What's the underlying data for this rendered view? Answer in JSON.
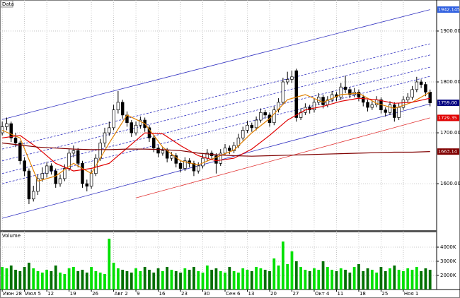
{
  "chart_data": {
    "type": "candlestick",
    "price_title": "Data",
    "volume_title": "Volume",
    "xlim": [
      -0.5,
      97
    ],
    "xticks": [
      {
        "value": 0,
        "label": "Июн 28"
      },
      {
        "value": 5,
        "label": "Июл 5"
      },
      {
        "value": 10,
        "label": "12"
      },
      {
        "value": 15,
        "label": "19"
      },
      {
        "value": 20,
        "label": "26"
      },
      {
        "value": 25,
        "label": "Авг 2"
      },
      {
        "value": 30,
        "label": "9"
      },
      {
        "value": 35,
        "label": "16"
      },
      {
        "value": 40,
        "label": "23"
      },
      {
        "value": 45,
        "label": "30"
      },
      {
        "value": 50,
        "label": "Сен 6"
      },
      {
        "value": 55,
        "label": "13"
      },
      {
        "value": 60,
        "label": "20"
      },
      {
        "value": 65,
        "label": "27"
      },
      {
        "value": 70,
        "label": "Окт 4"
      },
      {
        "value": 75,
        "label": "11"
      },
      {
        "value": 80,
        "label": "18"
      },
      {
        "value": 85,
        "label": "25"
      },
      {
        "value": 90,
        "label": "Ноя 1"
      }
    ],
    "ylim": [
      1510,
      1961
    ],
    "yticks": [
      {
        "value": 1600,
        "label": "1600.00"
      },
      {
        "value": 1700,
        "label": "1700.00"
      },
      {
        "value": 1800,
        "label": "1800.00"
      },
      {
        "value": 1900,
        "label": "1900.00"
      }
    ],
    "grid": true,
    "up_color": "#ffffff",
    "down_color": "#000000",
    "open": [
      1700,
      1712,
      1718,
      1690,
      1680,
      1645,
      1625,
      1570,
      1585,
      1610,
      1620,
      1635,
      1625,
      1600,
      1610,
      1630,
      1660,
      1665,
      1640,
      1600,
      1595,
      1620,
      1650,
      1680,
      1700,
      1710,
      1745,
      1760,
      1735,
      1720,
      1700,
      1715,
      1725,
      1710,
      1690,
      1670,
      1660,
      1665,
      1650,
      1655,
      1640,
      1630,
      1645,
      1640,
      1625,
      1635,
      1650,
      1660,
      1655,
      1640,
      1660,
      1670,
      1665,
      1675,
      1690,
      1705,
      1715,
      1710,
      1725,
      1740,
      1735,
      1720,
      1745,
      1760,
      1800,
      1805,
      1822,
      1730,
      1740,
      1750,
      1745,
      1760,
      1770,
      1755,
      1765,
      1775,
      1770,
      1790,
      1785,
      1775,
      1780,
      1770,
      1760,
      1750,
      1755,
      1765,
      1745,
      1740,
      1755,
      1730,
      1750,
      1765,
      1770,
      1785,
      1800,
      1795,
      1780
    ],
    "high": [
      1722,
      1730,
      1722,
      1700,
      1684,
      1652,
      1630,
      1596,
      1618,
      1632,
      1642,
      1640,
      1630,
      1618,
      1638,
      1668,
      1675,
      1670,
      1645,
      1608,
      1628,
      1658,
      1688,
      1710,
      1722,
      1755,
      1782,
      1765,
      1742,
      1725,
      1722,
      1732,
      1730,
      1715,
      1695,
      1676,
      1672,
      1670,
      1662,
      1660,
      1645,
      1652,
      1650,
      1645,
      1642,
      1658,
      1668,
      1665,
      1660,
      1668,
      1678,
      1675,
      1682,
      1698,
      1712,
      1724,
      1720,
      1732,
      1748,
      1745,
      1740,
      1752,
      1768,
      1808,
      1820,
      1822,
      1826,
      1748,
      1758,
      1755,
      1768,
      1778,
      1775,
      1772,
      1782,
      1780,
      1798,
      1812,
      1790,
      1788,
      1785,
      1775,
      1765,
      1762,
      1772,
      1770,
      1750,
      1762,
      1760,
      1758,
      1772,
      1778,
      1792,
      1810,
      1805,
      1800,
      1785
    ],
    "low": [
      1695,
      1705,
      1682,
      1672,
      1638,
      1615,
      1560,
      1565,
      1578,
      1604,
      1612,
      1618,
      1592,
      1594,
      1605,
      1625,
      1652,
      1632,
      1592,
      1585,
      1590,
      1615,
      1645,
      1672,
      1694,
      1705,
      1738,
      1728,
      1712,
      1692,
      1695,
      1708,
      1702,
      1682,
      1662,
      1652,
      1655,
      1642,
      1645,
      1632,
      1622,
      1625,
      1632,
      1615,
      1620,
      1630,
      1645,
      1648,
      1620,
      1635,
      1655,
      1658,
      1660,
      1670,
      1685,
      1700,
      1702,
      1705,
      1720,
      1728,
      1712,
      1715,
      1740,
      1755,
      1795,
      1798,
      1722,
      1725,
      1735,
      1738,
      1740,
      1755,
      1748,
      1750,
      1760,
      1762,
      1765,
      1778,
      1768,
      1770,
      1762,
      1752,
      1742,
      1745,
      1750,
      1738,
      1732,
      1735,
      1722,
      1725,
      1745,
      1760,
      1765,
      1780,
      1788,
      1772,
      1752
    ],
    "close": [
      1712,
      1718,
      1690,
      1680,
      1645,
      1625,
      1570,
      1585,
      1610,
      1620,
      1635,
      1625,
      1600,
      1610,
      1630,
      1660,
      1665,
      1640,
      1600,
      1595,
      1620,
      1650,
      1680,
      1700,
      1710,
      1745,
      1760,
      1735,
      1720,
      1700,
      1715,
      1725,
      1710,
      1690,
      1670,
      1660,
      1665,
      1650,
      1655,
      1640,
      1630,
      1645,
      1640,
      1625,
      1635,
      1650,
      1660,
      1655,
      1640,
      1660,
      1670,
      1665,
      1675,
      1690,
      1705,
      1715,
      1710,
      1725,
      1740,
      1735,
      1720,
      1745,
      1760,
      1800,
      1805,
      1810,
      1730,
      1740,
      1750,
      1745,
      1760,
      1770,
      1755,
      1765,
      1775,
      1770,
      1790,
      1785,
      1775,
      1780,
      1770,
      1760,
      1750,
      1755,
      1765,
      1745,
      1740,
      1755,
      1730,
      1750,
      1765,
      1770,
      1785,
      1800,
      1795,
      1780,
      1759
    ],
    "averages": [
      {
        "color": "#e08000",
        "x": [
          0,
          4,
          8,
          12,
          16,
          20,
          24,
          28,
          32,
          36,
          40,
          44,
          48,
          52,
          56,
          60,
          64,
          68,
          72,
          76,
          80,
          84,
          88,
          92,
          96
        ],
        "values": [
          1705,
          1690,
          1605,
          1615,
          1640,
          1620,
          1680,
          1735,
          1718,
          1672,
          1645,
          1637,
          1652,
          1666,
          1700,
          1728,
          1765,
          1775,
          1760,
          1775,
          1778,
          1758,
          1748,
          1760,
          1780
        ]
      },
      {
        "color": "#e00000",
        "x": [
          0,
          4,
          8,
          12,
          16,
          20,
          24,
          28,
          32,
          36,
          40,
          44,
          48,
          52,
          56,
          60,
          64,
          68,
          72,
          76,
          80,
          84,
          88,
          92,
          96
        ],
        "values": [
          1690,
          1695,
          1670,
          1640,
          1625,
          1630,
          1640,
          1670,
          1700,
          1698,
          1675,
          1655,
          1645,
          1650,
          1668,
          1695,
          1725,
          1745,
          1752,
          1762,
          1768,
          1765,
          1758,
          1760,
          1768
        ]
      },
      {
        "color": "#800000",
        "x": [
          0,
          4,
          8,
          12,
          16,
          20,
          24,
          28,
          32,
          36,
          40,
          44,
          48,
          52,
          56,
          60,
          64,
          68,
          72,
          76,
          80,
          84,
          88,
          92,
          96
        ],
        "values": [
          1680,
          1676,
          1672,
          1670,
          1668,
          1667,
          1667,
          1668,
          1668,
          1667,
          1665,
          1660,
          1657,
          1655,
          1654,
          1655,
          1656,
          1657,
          1658,
          1659,
          1660,
          1661,
          1662,
          1662,
          1663.14
        ]
      }
    ],
    "channels": [
      {
        "color": "#3030c0",
        "dashed": false,
        "x": [
          0,
          96
        ],
        "values": [
          1726,
          1942.1456
        ]
      },
      {
        "color": "#3030c0",
        "dashed": true,
        "x": [
          0,
          96
        ],
        "values": [
          1668,
          1875
        ]
      },
      {
        "color": "#3030c0",
        "dashed": true,
        "x": [
          0,
          96
        ],
        "values": [
          1645,
          1853
        ]
      },
      {
        "color": "#3030c0",
        "dashed": true,
        "x": [
          0,
          96
        ],
        "values": [
          1620,
          1829
        ]
      },
      {
        "color": "#3030c0",
        "dashed": true,
        "x": [
          0,
          96
        ],
        "values": [
          1600,
          1811
        ]
      },
      {
        "color": "#3030c0",
        "dashed": false,
        "x": [
          0,
          96
        ],
        "values": [
          1532,
          1757
        ]
      },
      {
        "color": "#e03030",
        "dashed": false,
        "x": [
          30,
          96
        ],
        "values": [
          1572,
          1729.35
        ]
      }
    ],
    "price_labels": [
      {
        "value": 1942.1456,
        "label": "1942.1456",
        "color": "#3060e0"
      },
      {
        "value": 1759,
        "label": "1759.00",
        "color": "#000080"
      },
      {
        "value": 1729.35,
        "label": "1729.35",
        "color": "#e00000"
      },
      {
        "value": 1663.14,
        "label": "1663.14",
        "color": "#800000"
      }
    ],
    "volume": [
      2600,
      2500,
      2700,
      2400,
      2300,
      2600,
      2900,
      2500,
      2300,
      2200,
      2400,
      2300,
      2700,
      2200,
      2100,
      2500,
      2600,
      2300,
      2400,
      2200,
      2600,
      2300,
      2200,
      2100,
      4600,
      2900,
      2500,
      2400,
      2300,
      2200,
      2500,
      2300,
      2600,
      2400,
      2200,
      2500,
      2300,
      2600,
      2400,
      2300,
      2200,
      2500,
      2400,
      2600,
      2300,
      2200,
      2700,
      2400,
      2500,
      2300,
      2200,
      2600,
      2300,
      2200,
      2500,
      2400,
      2300,
      2600,
      2500,
      2400,
      2300,
      3200,
      2700,
      4400,
      2800,
      3700,
      3000,
      2600,
      2400,
      2300,
      2500,
      2400,
      3000,
      2600,
      2400,
      2300,
      2500,
      2400,
      2200,
      2600,
      2800,
      2300,
      2500,
      2400,
      2200,
      2600,
      2300,
      2500,
      2700,
      2400,
      2300,
      2500,
      2400,
      2600,
      2300,
      2500,
      2400
    ],
    "volume_ylim": [
      1000,
      5000
    ],
    "volume_yticks": [
      {
        "value": 2000,
        "label": "2000K"
      },
      {
        "value": 3000,
        "label": "3000K"
      },
      {
        "value": 4000,
        "label": "4000K"
      }
    ],
    "volume_up_color": "#00e000",
    "volume_down_color": "#007000"
  }
}
